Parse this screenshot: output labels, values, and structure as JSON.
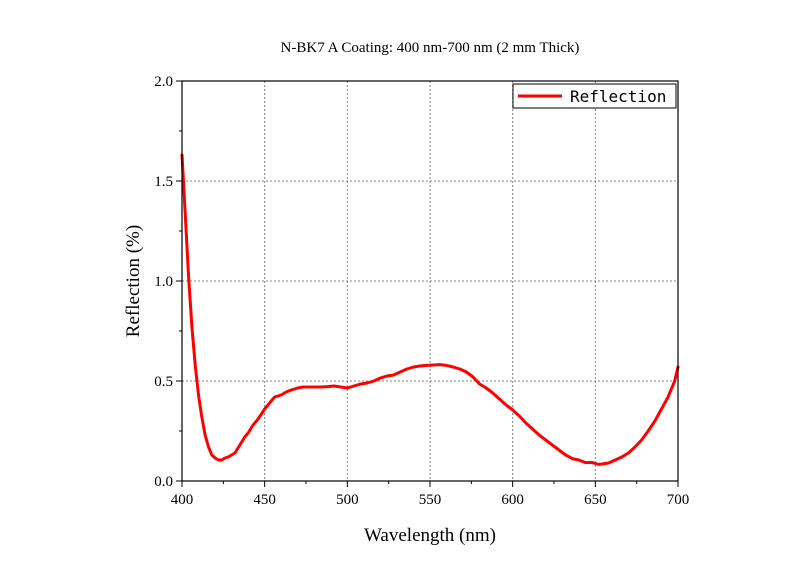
{
  "chart_data": {
    "type": "line",
    "title": "N-BK7 A Coating: 400 nm-700 nm (2 mm Thick)",
    "xlabel": "Wavelength (nm)",
    "ylabel": "Reflection (%)",
    "xlim": [
      400,
      700
    ],
    "ylim": [
      0.0,
      2.0
    ],
    "xticks": [
      "400",
      "450",
      "500",
      "550",
      "600",
      "650",
      "700"
    ],
    "yticks": [
      "0.0",
      "0.5",
      "1.0",
      "1.5",
      "2.0"
    ],
    "grid": true,
    "legend_position": "top-right",
    "series": [
      {
        "name": "Reflection",
        "color": "#ff0000",
        "x": [
          400,
          402,
          404,
          406,
          408,
          410,
          412,
          414,
          416,
          418,
          420,
          422,
          424,
          426,
          428,
          430,
          432,
          435,
          438,
          440,
          443,
          446,
          450,
          453,
          456,
          460,
          463,
          466,
          470,
          473,
          476,
          480,
          484,
          488,
          492,
          496,
          500,
          504,
          508,
          512,
          516,
          520,
          524,
          528,
          532,
          536,
          540,
          544,
          548,
          552,
          556,
          560,
          564,
          568,
          572,
          576,
          580,
          584,
          588,
          592,
          596,
          600,
          604,
          608,
          612,
          616,
          620,
          624,
          628,
          632,
          636,
          640,
          644,
          648,
          652,
          654,
          658,
          662,
          666,
          670,
          674,
          678,
          682,
          686,
          690,
          694,
          698,
          700
        ],
        "y": [
          1.63,
          1.33,
          1.02,
          0.77,
          0.58,
          0.43,
          0.32,
          0.23,
          0.17,
          0.13,
          0.115,
          0.105,
          0.105,
          0.115,
          0.12,
          0.13,
          0.14,
          0.18,
          0.22,
          0.24,
          0.28,
          0.31,
          0.36,
          0.39,
          0.42,
          0.43,
          0.445,
          0.455,
          0.465,
          0.47,
          0.47,
          0.47,
          0.47,
          0.472,
          0.475,
          0.47,
          0.465,
          0.475,
          0.485,
          0.49,
          0.5,
          0.515,
          0.525,
          0.53,
          0.545,
          0.56,
          0.57,
          0.575,
          0.578,
          0.58,
          0.582,
          0.578,
          0.57,
          0.56,
          0.545,
          0.52,
          0.485,
          0.465,
          0.44,
          0.41,
          0.38,
          0.355,
          0.325,
          0.29,
          0.26,
          0.23,
          0.205,
          0.18,
          0.155,
          0.13,
          0.112,
          0.105,
          0.092,
          0.093,
          0.083,
          0.085,
          0.09,
          0.105,
          0.12,
          0.14,
          0.17,
          0.205,
          0.25,
          0.3,
          0.36,
          0.42,
          0.5,
          0.57
        ]
      }
    ]
  }
}
